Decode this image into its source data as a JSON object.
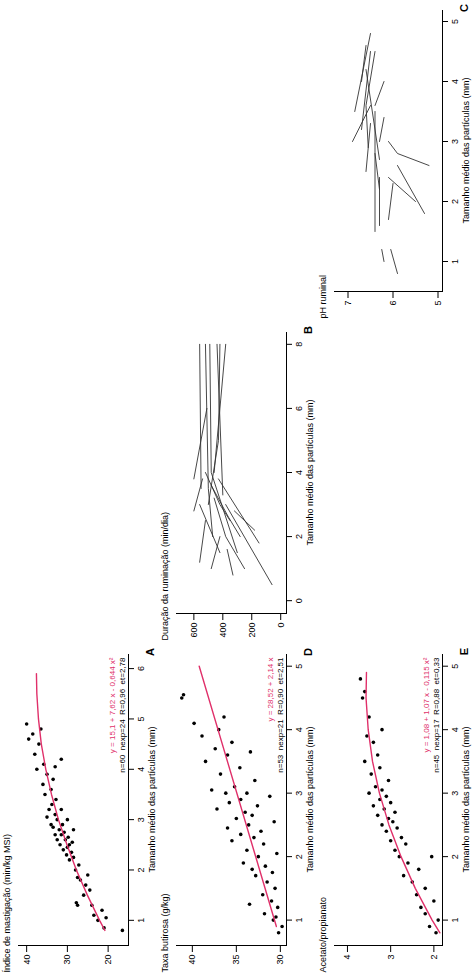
{
  "chart_data": [
    {
      "type": "scatter",
      "title": "A",
      "y_label": "Índice de mastigação (min/kg MSI)",
      "x_label": "Tamanho médio das partículas (mm)",
      "xlim": [
        0.5,
        6.3
      ],
      "ylim": [
        15,
        42
      ],
      "xticks": [
        1,
        2,
        3,
        4,
        5,
        6
      ],
      "yticks": [
        20,
        30,
        40
      ],
      "series": [
        {
          "type": "scatter",
          "color": "#000000",
          "marker": "circle",
          "x": [
            0.8,
            0.85,
            1.0,
            1.05,
            1.1,
            1.2,
            1.3,
            1.3,
            1.35,
            1.5,
            1.6,
            1.7,
            1.8,
            1.85,
            1.9,
            2.0,
            2.1,
            2.2,
            2.25,
            2.3,
            2.35,
            2.4,
            2.45,
            2.5,
            2.5,
            2.55,
            2.6,
            2.6,
            2.65,
            2.7,
            2.7,
            2.75,
            2.8,
            2.8,
            2.85,
            2.9,
            2.9,
            3.0,
            3.0,
            3.05,
            3.1,
            3.2,
            3.2,
            3.3,
            3.4,
            3.5,
            3.6,
            3.7,
            3.8,
            3.9,
            4.0,
            4.05,
            4.1,
            4.2,
            4.3,
            4.5,
            4.6,
            4.7,
            4.8,
            4.9
          ],
          "values": [
            16.5,
            21,
            22.5,
            20.5,
            23.5,
            21.5,
            24,
            27.5,
            27.8,
            26,
            24.5,
            25.5,
            26.8,
            27.5,
            25,
            28,
            27.2,
            29.5,
            28.5,
            30.2,
            29,
            31,
            30,
            29.5,
            31.8,
            28.8,
            30.5,
            32.5,
            29.8,
            31.5,
            33,
            30.8,
            32,
            28.5,
            33.5,
            31.2,
            34,
            32.5,
            30,
            35,
            33,
            31.5,
            34.5,
            33.8,
            32.8,
            35.5,
            34,
            36,
            33.5,
            35,
            37.5,
            33,
            35.8,
            31.5,
            38,
            37,
            39.5,
            38.5,
            36.5,
            40
          ]
        },
        {
          "type": "line",
          "color": "#e0306a",
          "x": [
            0.8,
            1,
            1.5,
            2,
            2.5,
            3,
            3.5,
            4,
            4.5,
            5,
            5.5,
            5.9
          ],
          "values": [
            20.8,
            22.1,
            25.1,
            27.8,
            30.1,
            32.2,
            33.9,
            35.3,
            36.4,
            37.1,
            37.5,
            37.6
          ]
        }
      ],
      "annotations": [
        {
          "text": "y = 15,1 + 7,62 x - 0,644 x²",
          "color": "#e0306a"
        },
        {
          "text": "n=60  nexp=24  R=0,96  et=2,78",
          "color": "#000000"
        }
      ]
    },
    {
      "type": "line",
      "title": "B",
      "color": "#333333",
      "y_label": "Duração da ruminação (min/dia)",
      "x_label": "Tamanho médio das partículas (mm)",
      "xlim": [
        -0.4,
        8.4
      ],
      "ylim": [
        -40,
        720
      ],
      "xticks": [
        0,
        2,
        4,
        6,
        8
      ],
      "yticks": [
        0,
        200,
        400,
        600
      ],
      "series": [
        {
          "x": [
            0.5,
            3.0
          ],
          "values": [
            60,
            380
          ]
        },
        {
          "x": [
            1.0,
            2.0,
            3.2
          ],
          "values": [
            250,
            380,
            460
          ]
        },
        {
          "x": [
            1.5,
            4.0,
            8.0
          ],
          "values": [
            300,
            480,
            490
          ]
        },
        {
          "x": [
            1.2,
            2.5
          ],
          "values": [
            560,
            520
          ]
        },
        {
          "x": [
            2.0,
            3.5,
            8.0
          ],
          "values": [
            470,
            500,
            520
          ]
        },
        {
          "x": [
            2.5,
            3.0,
            4.0
          ],
          "values": [
            350,
            420,
            520
          ]
        },
        {
          "x": [
            1.8,
            3.8
          ],
          "values": [
            150,
            430
          ]
        },
        {
          "x": [
            3.0,
            5.0,
            8.0
          ],
          "values": [
            500,
            430,
            420
          ]
        },
        {
          "x": [
            2.8,
            3.8
          ],
          "values": [
            600,
            540
          ]
        },
        {
          "x": [
            3.5,
            8.0
          ],
          "values": [
            550,
            560
          ]
        },
        {
          "x": [
            1.0,
            2.0
          ],
          "values": [
            480,
            420
          ]
        },
        {
          "x": [
            2.2,
            2.8
          ],
          "values": [
            180,
            320
          ]
        },
        {
          "x": [
            4.0,
            8.0
          ],
          "values": [
            460,
            380
          ]
        },
        {
          "x": [
            3.3,
            8.0
          ],
          "values": [
            400,
            440
          ]
        },
        {
          "x": [
            2.0,
            2.6,
            3.6
          ],
          "values": [
            280,
            360,
            480
          ]
        },
        {
          "x": [
            1.5,
            3.0
          ],
          "values": [
            420,
            560
          ]
        },
        {
          "x": [
            0.8,
            1.6
          ],
          "values": [
            330,
            370
          ]
        },
        {
          "x": [
            3.8,
            6.0
          ],
          "values": [
            600,
            510
          ]
        }
      ]
    },
    {
      "type": "line",
      "title": "C",
      "color": "#333333",
      "y_label": "pH ruminal",
      "x_label": "Tamanho médio das partículas (mm)",
      "xlim": [
        0.5,
        5.2
      ],
      "ylim": [
        4.9,
        7.3
      ],
      "xticks": [
        1,
        2,
        3,
        4,
        5
      ],
      "yticks": [
        5,
        6,
        7
      ],
      "series": [
        {
          "x": [
            0.8,
            1.2
          ],
          "values": [
            5.9,
            6.05
          ]
        },
        {
          "x": [
            1.0,
            1.2
          ],
          "values": [
            6.2,
            6.25
          ]
        },
        {
          "x": [
            1.8,
            2.6
          ],
          "values": [
            5.3,
            5.9
          ]
        },
        {
          "x": [
            2.0,
            2.4
          ],
          "values": [
            5.5,
            6.1
          ]
        },
        {
          "x": [
            2.6,
            2.8,
            3.0
          ],
          "values": [
            5.2,
            5.9,
            6.1
          ]
        },
        {
          "x": [
            2.2,
            2.8
          ],
          "values": [
            6.3,
            6.4
          ]
        },
        {
          "x": [
            1.7,
            2.3
          ],
          "values": [
            6.1,
            6.0
          ]
        },
        {
          "x": [
            1.5,
            3.5
          ],
          "values": [
            6.4,
            6.4
          ]
        },
        {
          "x": [
            2.5,
            3.3
          ],
          "values": [
            6.6,
            6.5
          ]
        },
        {
          "x": [
            3.0,
            3.6
          ],
          "values": [
            6.9,
            6.5
          ]
        },
        {
          "x": [
            3.2,
            4.5
          ],
          "values": [
            6.7,
            6.5
          ]
        },
        {
          "x": [
            3.5,
            4.8
          ],
          "values": [
            6.85,
            6.5
          ]
        },
        {
          "x": [
            2.7,
            4.2
          ],
          "values": [
            6.3,
            6.6
          ]
        },
        {
          "x": [
            3.6,
            4.0
          ],
          "values": [
            6.4,
            6.2
          ]
        },
        {
          "x": [
            2.9,
            3.6,
            4.5
          ],
          "values": [
            6.55,
            6.6,
            6.4
          ]
        },
        {
          "x": [
            1.6,
            2.4
          ],
          "values": [
            6.3,
            6.3
          ]
        },
        {
          "x": [
            3.0,
            3.4
          ],
          "values": [
            6.3,
            6.2
          ]
        },
        {
          "x": [
            4.0,
            4.6
          ],
          "values": [
            6.7,
            6.6
          ]
        }
      ]
    },
    {
      "type": "scatter",
      "title": "D",
      "y_label": "Taxa butirosa (g/kg)",
      "x_label": "Tamanho médio das partículas (mm)",
      "xlim": [
        0.6,
        5.2
      ],
      "ylim": [
        29.3,
        41.8
      ],
      "xticks": [
        1,
        2,
        3,
        4,
        5
      ],
      "yticks": [
        30,
        35,
        40
      ],
      "series": [
        {
          "type": "scatter",
          "color": "#000000",
          "marker": "circle",
          "x": [
            0.8,
            0.9,
            1.0,
            1.05,
            1.1,
            1.2,
            1.25,
            1.3,
            1.4,
            1.5,
            1.6,
            1.7,
            1.75,
            1.8,
            1.85,
            1.9,
            2.0,
            2.05,
            2.1,
            2.2,
            2.25,
            2.3,
            2.35,
            2.4,
            2.45,
            2.5,
            2.55,
            2.6,
            2.65,
            2.7,
            2.75,
            2.8,
            2.85,
            2.9,
            2.95,
            3.0,
            3.0,
            3.05,
            3.1,
            3.2,
            3.3,
            3.4,
            3.5,
            3.6,
            3.65,
            3.7,
            3.8,
            3.9,
            4.0,
            4.1,
            4.2,
            4.5,
            4.55
          ],
          "values": [
            30.2,
            29.8,
            30.8,
            30.5,
            31.8,
            30.3,
            33.5,
            31,
            32,
            30.6,
            31.5,
            32.8,
            30.9,
            33.2,
            31.7,
            34.2,
            32.5,
            30.4,
            33.8,
            31.9,
            35.5,
            33,
            34.5,
            32.2,
            36,
            33.6,
            30.7,
            35,
            33.2,
            34,
            37.2,
            32.6,
            35.8,
            34.5,
            31.2,
            36.2,
            33.8,
            37.8,
            35.2,
            32.9,
            36.8,
            34.6,
            38.5,
            36,
            33.4,
            37.4,
            35.5,
            38.9,
            37,
            39.8,
            36.4,
            41.2,
            41.0
          ]
        },
        {
          "type": "line",
          "color": "#e0306a",
          "x": [
            0.9,
            5.0
          ],
          "values": [
            30.45,
            39.22
          ]
        }
      ],
      "annotations": [
        {
          "text": "y = 28,52 + 2,14 x",
          "color": "#e0306a"
        },
        {
          "text": "n=53  nexp=21  R=0,90  et=2,51",
          "color": "#000000"
        }
      ]
    },
    {
      "type": "scatter",
      "title": "E",
      "y_label": "Acetato/propianato",
      "x_label": "Tamanho médio das partículas (mm)",
      "xlim": [
        0.6,
        5.2
      ],
      "ylim": [
        1.8,
        4.3
      ],
      "xticks": [
        1,
        2,
        3,
        4,
        5
      ],
      "yticks": [
        2,
        3,
        4
      ],
      "series": [
        {
          "type": "scatter",
          "color": "#000000",
          "marker": "circle",
          "x": [
            0.8,
            0.9,
            1.0,
            1.1,
            1.2,
            1.3,
            1.4,
            1.5,
            1.6,
            1.7,
            1.8,
            1.9,
            2.0,
            2.0,
            2.1,
            2.2,
            2.25,
            2.3,
            2.4,
            2.45,
            2.5,
            2.55,
            2.6,
            2.65,
            2.7,
            2.75,
            2.8,
            2.85,
            2.9,
            2.95,
            3.0,
            3.05,
            3.1,
            3.2,
            3.3,
            3.4,
            3.5,
            3.6,
            3.8,
            3.9,
            4.0,
            4.2,
            4.5,
            4.6,
            4.8
          ],
          "values": [
            1.95,
            2.1,
            1.9,
            2.2,
            2.3,
            2.0,
            2.4,
            2.2,
            2.5,
            2.7,
            2.35,
            2.6,
            2.8,
            2.05,
            2.9,
            2.65,
            3.0,
            2.75,
            3.1,
            2.85,
            3.2,
            2.95,
            3.05,
            3.3,
            2.9,
            3.15,
            3.4,
            3.0,
            3.25,
            3.1,
            3.5,
            3.2,
            3.35,
            3.05,
            3.45,
            3.25,
            3.6,
            3.3,
            3.4,
            3.55,
            3.2,
            3.5,
            3.65,
            3.6,
            3.7
          ]
        },
        {
          "type": "line",
          "color": "#e0306a",
          "x": [
            0.8,
            1,
            1.5,
            2,
            2.5,
            3,
            3.5,
            4,
            4.5,
            4.9
          ],
          "values": [
            1.86,
            2.04,
            2.43,
            2.76,
            3.04,
            3.26,
            3.42,
            3.52,
            3.57,
            3.56
          ]
        }
      ],
      "annotations": [
        {
          "text": "y = 1,08 + 1,07 x - 0,115 x²",
          "color": "#e0306a"
        },
        {
          "text": "n=45  nexp=17  R=0,88  et=0,33",
          "color": "#000000"
        }
      ]
    }
  ]
}
